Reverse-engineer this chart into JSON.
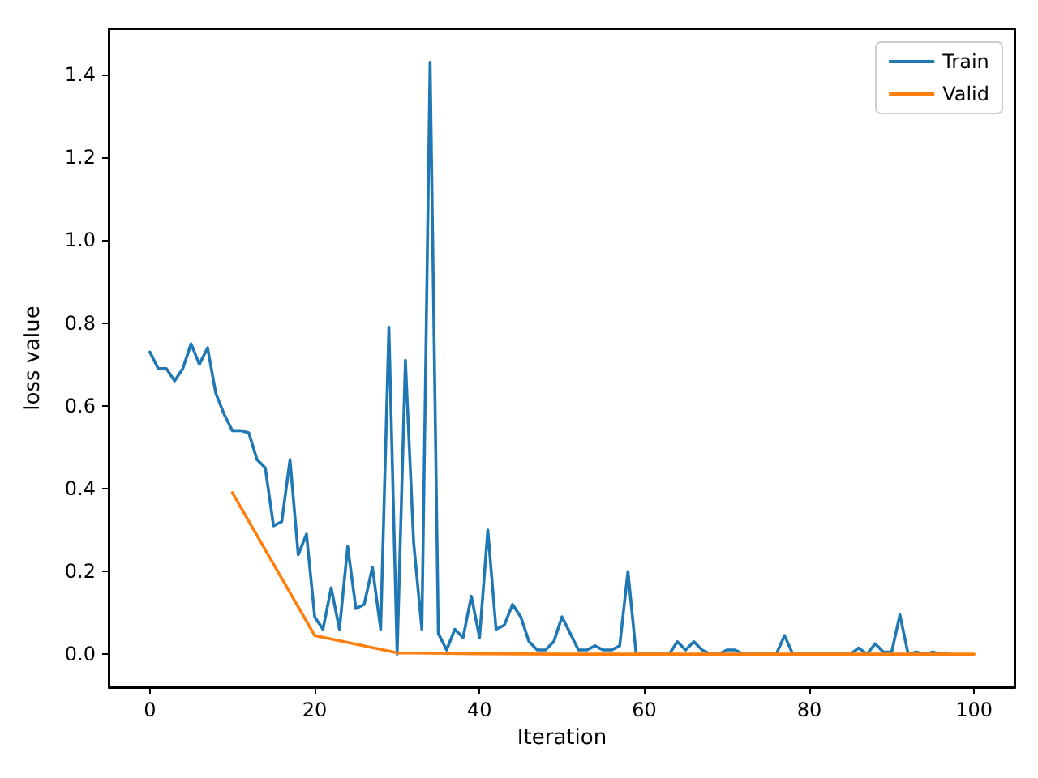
{
  "chart_data": {
    "type": "line",
    "xlabel": "Iteration",
    "ylabel": "loss value",
    "xlim": [
      -5,
      105
    ],
    "ylim": [
      -0.08,
      1.51
    ],
    "xticks": [
      0,
      20,
      40,
      60,
      80,
      100
    ],
    "yticks": [
      {
        "value": 0,
        "label": "0.0"
      },
      {
        "value": 0.2,
        "label": "0.2"
      },
      {
        "value": 0.4,
        "label": "0.4"
      },
      {
        "value": 0.6,
        "label": "0.6"
      },
      {
        "value": 0.8,
        "label": "0.8"
      },
      {
        "value": 1.0,
        "label": "1.0"
      },
      {
        "value": 1.2,
        "label": "1.2"
      },
      {
        "value": 1.4,
        "label": "1.4"
      }
    ],
    "grid": false,
    "legend": "top right",
    "marker": "none",
    "line_style": "solid",
    "series": [
      {
        "name": "Train",
        "color": "#1f77b4",
        "x": [
          0,
          1,
          2,
          3,
          4,
          5,
          6,
          7,
          8,
          9,
          10,
          11,
          12,
          13,
          14,
          15,
          16,
          17,
          18,
          19,
          20,
          21,
          22,
          23,
          24,
          25,
          26,
          27,
          28,
          29,
          30,
          31,
          32,
          33,
          34,
          35,
          36,
          37,
          38,
          39,
          40,
          41,
          42,
          43,
          44,
          45,
          46,
          47,
          48,
          49,
          50,
          51,
          52,
          53,
          54,
          55,
          56,
          57,
          58,
          59,
          60,
          61,
          62,
          63,
          64,
          65,
          66,
          67,
          68,
          69,
          70,
          71,
          72,
          73,
          74,
          75,
          76,
          77,
          78,
          79,
          80,
          81,
          82,
          83,
          84,
          85,
          86,
          87,
          88,
          89,
          90,
          91,
          92,
          93,
          94,
          95,
          96,
          97
        ],
        "values": [
          0.73,
          0.69,
          0.69,
          0.66,
          0.69,
          0.75,
          0.7,
          0.74,
          0.63,
          0.58,
          0.54,
          0.54,
          0.535,
          0.47,
          0.45,
          0.31,
          0.32,
          0.47,
          0.24,
          0.29,
          0.09,
          0.06,
          0.16,
          0.06,
          0.26,
          0.11,
          0.12,
          0.21,
          0.06,
          0.79,
          0.0,
          0.71,
          0.27,
          0.06,
          1.43,
          0.05,
          0.01,
          0.06,
          0.04,
          0.14,
          0.04,
          0.3,
          0.06,
          0.07,
          0.12,
          0.09,
          0.03,
          0.01,
          0.01,
          0.03,
          0.09,
          0.05,
          0.01,
          0.01,
          0.02,
          0.01,
          0.01,
          0.02,
          0.2,
          0.0,
          0.0,
          0.0,
          0.0,
          0.0,
          0.03,
          0.01,
          0.03,
          0.01,
          0.0,
          0.0,
          0.01,
          0.01,
          0.0,
          0.0,
          0.0,
          0.0,
          0.0,
          0.045,
          0.0,
          0.0,
          0.0,
          0.0,
          0.0,
          0.0,
          0.0,
          0.0,
          0.015,
          0.0,
          0.025,
          0.005,
          0.005,
          0.095,
          0.0,
          0.005,
          0.0,
          0.005,
          0.0,
          0.0
        ]
      },
      {
        "name": "Valid",
        "color": "#ff7f0e",
        "x": [
          10,
          20,
          30,
          40,
          50,
          60,
          70,
          80,
          90,
          100
        ],
        "values": [
          0.39,
          0.045,
          0.003,
          0.001,
          0.0,
          0.0,
          0.0,
          0.0,
          0.0,
          0.0
        ]
      }
    ]
  }
}
